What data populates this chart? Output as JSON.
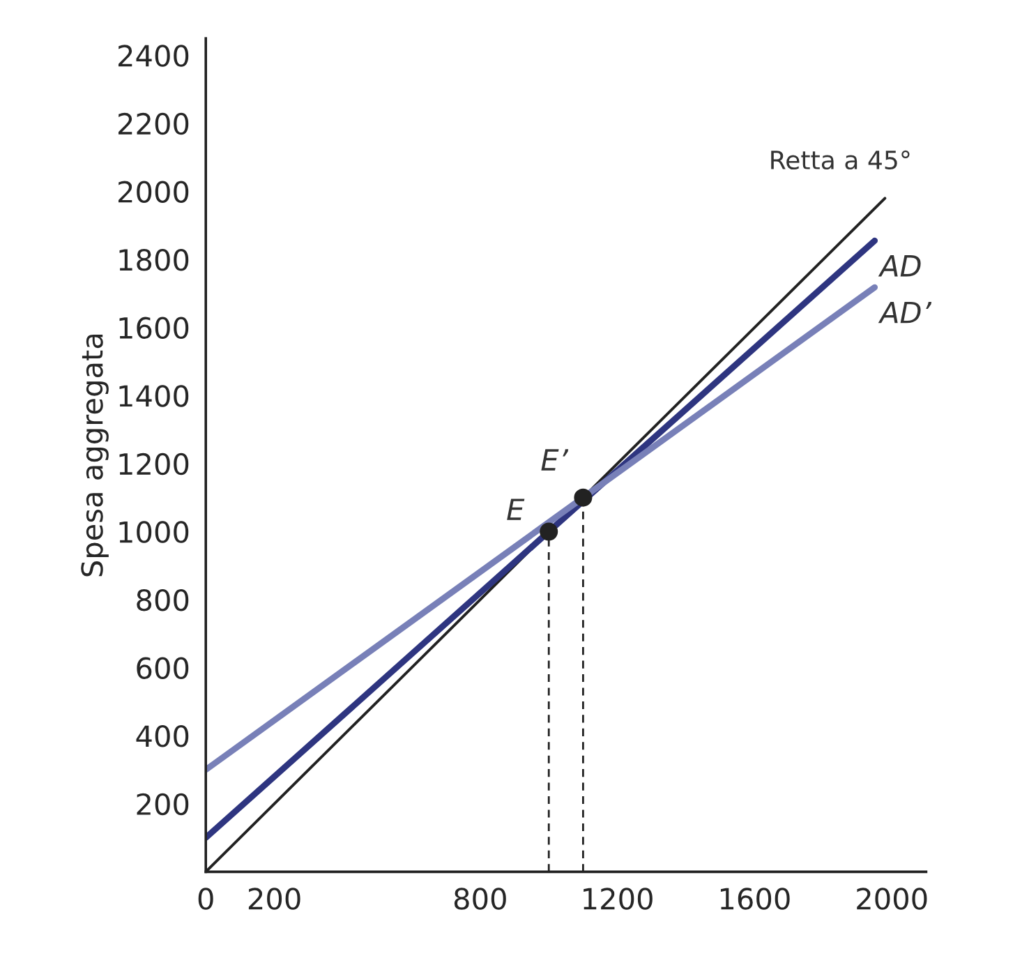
{
  "chart_data": {
    "type": "line",
    "ylabel": "Spesa aggregata",
    "xlim": [
      0,
      2100
    ],
    "ylim": [
      0,
      2450
    ],
    "xticks": [
      0,
      200,
      800,
      1200,
      1600,
      2000
    ],
    "yticks": [
      200,
      400,
      600,
      800,
      1000,
      1200,
      1400,
      1600,
      1800,
      2000,
      2200,
      2400
    ],
    "grid": false,
    "legend": false,
    "series": [
      {
        "color": "#222222",
        "x": [
          0,
          1980
        ],
        "values": [
          0,
          1980
        ],
        "line_style": "solid"
      },
      {
        "name": "AD",
        "color": "#2e3580",
        "x": [
          0,
          1950
        ],
        "values": [
          100,
          1855
        ],
        "line_style": "solid"
      },
      {
        "name": "AD’",
        "color": "#7880b8",
        "x": [
          0,
          1950
        ],
        "values": [
          300,
          1718
        ],
        "line_style": "solid"
      },
      {
        "color": "#222222",
        "x": [
          1000,
          1000
        ],
        "values": [
          0,
          1000
        ],
        "line_style": "dashed"
      },
      {
        "color": "#222222",
        "x": [
          1100,
          1100
        ],
        "values": [
          0,
          1100
        ],
        "line_style": "dashed"
      },
      {
        "type": "scatter",
        "color": "#222222",
        "x": [
          1000,
          1100
        ],
        "values": [
          1000,
          1100
        ],
        "marker": "circle"
      }
    ],
    "annotations": [
      {
        "text": "Retta a 45°",
        "x": 1980,
        "y": 1980
      },
      {
        "text": "E",
        "x": 1000,
        "y": 1000
      },
      {
        "text": "E’",
        "x": 1100,
        "y": 1100
      }
    ]
  }
}
